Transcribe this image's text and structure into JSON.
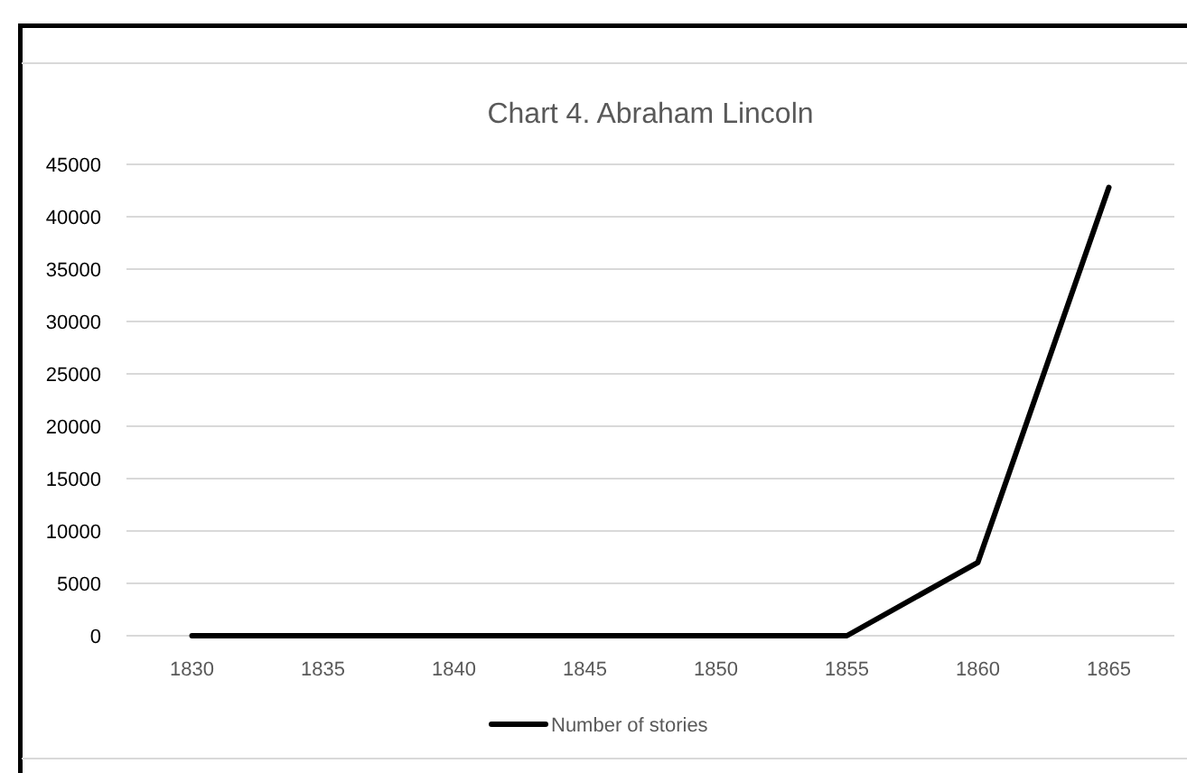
{
  "chart_data": {
    "type": "line",
    "title": "Chart 4. Abraham Lincoln",
    "categories": [
      "1830",
      "1835",
      "1840",
      "1845",
      "1850",
      "1855",
      "1860",
      "1865"
    ],
    "series": [
      {
        "name": "Number of stories",
        "color": "#000000",
        "values": [
          0,
          0,
          0,
          0,
          0,
          0,
          7000,
          42800
        ]
      }
    ],
    "ylim": [
      0,
      45000
    ],
    "yticks": [
      0,
      5000,
      10000,
      15000,
      20000,
      25000,
      30000,
      35000,
      40000,
      45000
    ],
    "grid": "y",
    "legend": "bottom",
    "marker": "none",
    "line_style": "solid"
  }
}
